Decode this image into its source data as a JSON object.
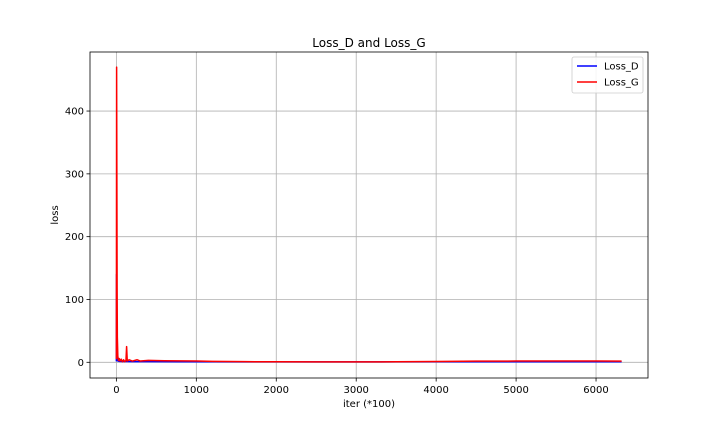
{
  "chart_data": {
    "type": "line",
    "title": "Loss_D and Loss_G",
    "xlabel": "iter (*100)",
    "ylabel": "loss",
    "xlim": [
      -330,
      6650
    ],
    "ylim": [
      -25,
      494
    ],
    "x_ticks": [
      0,
      1000,
      2000,
      3000,
      4000,
      5000,
      6000
    ],
    "y_ticks": [
      0,
      100,
      200,
      300,
      400
    ],
    "grid": true,
    "legend_position": "top-right",
    "series": [
      {
        "name": "Loss_D",
        "color": "#0000ff",
        "points": [
          [
            0,
            1.5
          ],
          [
            2,
            140
          ],
          [
            5,
            60
          ],
          [
            10,
            8
          ],
          [
            20,
            2
          ],
          [
            40,
            1.5
          ],
          [
            80,
            1.2
          ],
          [
            120,
            1.3
          ],
          [
            200,
            1.1
          ],
          [
            400,
            1.0
          ],
          [
            800,
            0.9
          ],
          [
            1200,
            0.8
          ],
          [
            2000,
            0.7
          ],
          [
            3000,
            0.7
          ],
          [
            4000,
            0.8
          ],
          [
            5000,
            0.9
          ],
          [
            6000,
            0.9
          ],
          [
            6320,
            0.9
          ]
        ]
      },
      {
        "name": "Loss_G",
        "color": "#ff0000",
        "points": [
          [
            0,
            5
          ],
          [
            3,
            470
          ],
          [
            6,
            300
          ],
          [
            9,
            120
          ],
          [
            12,
            40
          ],
          [
            18,
            10
          ],
          [
            25,
            3
          ],
          [
            35,
            6
          ],
          [
            45,
            2
          ],
          [
            60,
            5
          ],
          [
            75,
            1
          ],
          [
            90,
            4
          ],
          [
            105,
            1
          ],
          [
            120,
            3
          ],
          [
            128,
            25
          ],
          [
            136,
            2
          ],
          [
            160,
            4
          ],
          [
            200,
            2
          ],
          [
            260,
            4
          ],
          [
            300,
            2
          ],
          [
            400,
            3
          ],
          [
            600,
            2.5
          ],
          [
            800,
            2.2
          ],
          [
            1000,
            2
          ],
          [
            1200,
            1.5
          ],
          [
            1600,
            1
          ],
          [
            2000,
            0.8
          ],
          [
            2500,
            0.6
          ],
          [
            3000,
            0.6
          ],
          [
            3500,
            0.8
          ],
          [
            4000,
            1.2
          ],
          [
            4500,
            1.8
          ],
          [
            5000,
            2.0
          ],
          [
            5500,
            2.0
          ],
          [
            6000,
            2.0
          ],
          [
            6320,
            1.8
          ]
        ]
      }
    ]
  }
}
